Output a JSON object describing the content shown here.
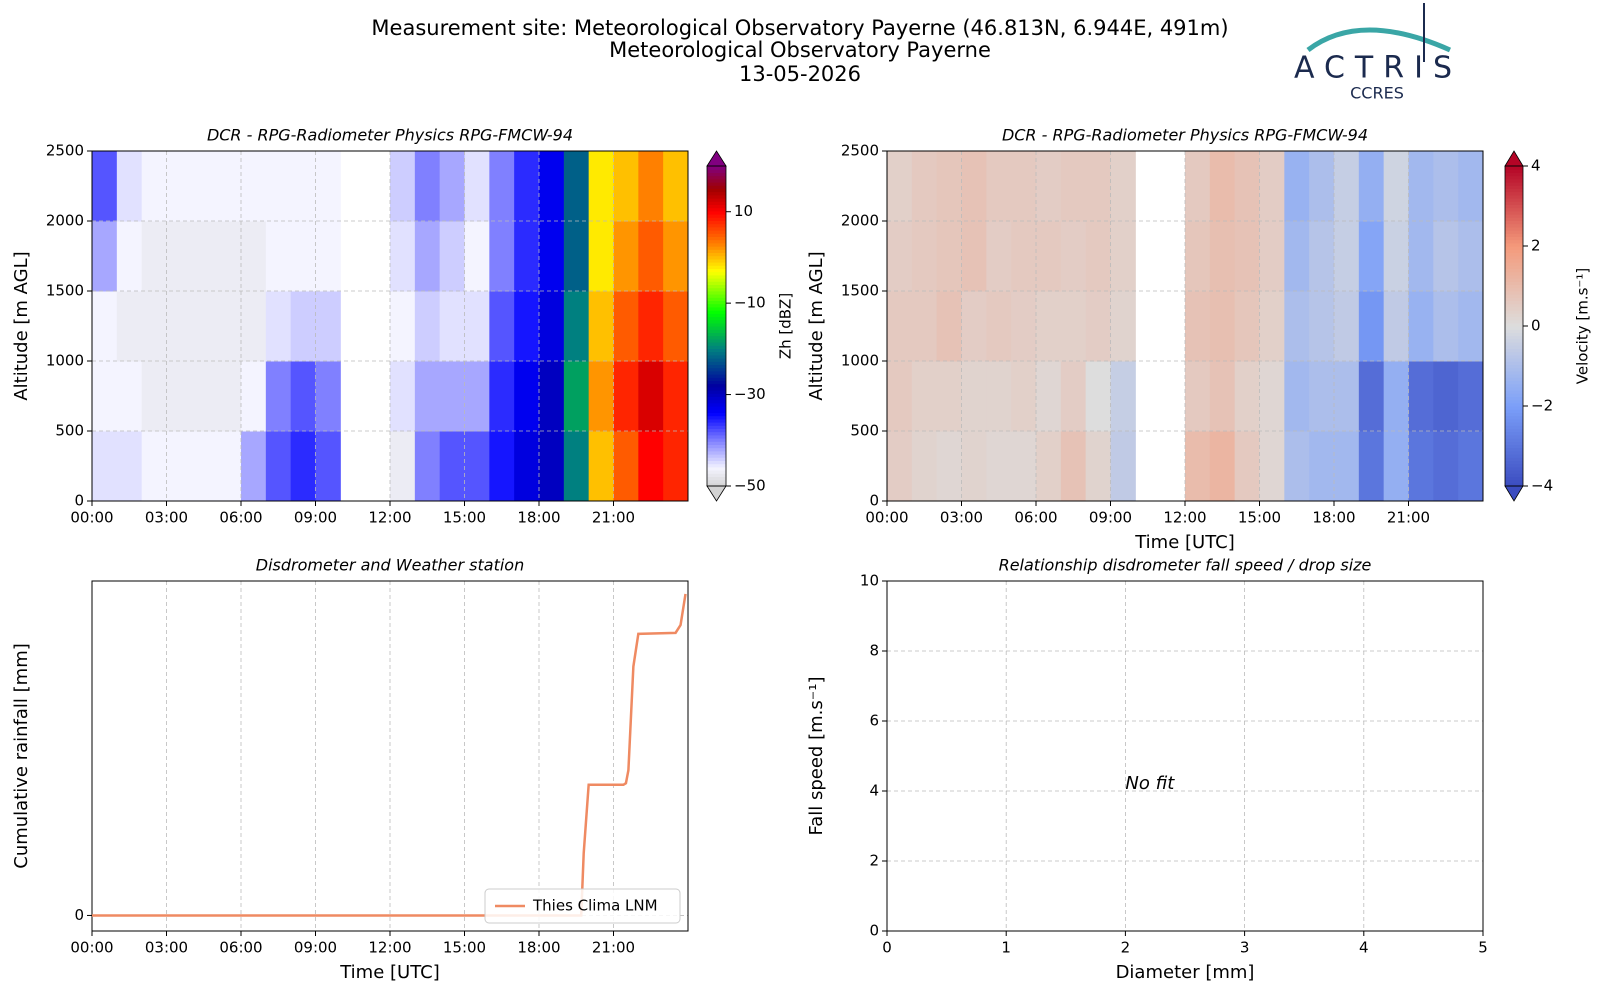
{
  "header": {
    "title_lines": [
      "Measurement site: Meteorological Observatory Payerne (46.813N, 6.944E, 491m)",
      "Meteorological Observatory Payerne",
      "13-05-2026"
    ],
    "logo": {
      "name": "ACTRIS",
      "subtitle": "CCRES"
    }
  },
  "chart_data": [
    {
      "type": "heatmap",
      "title": "DCR - RPG-Radiometer Physics RPG-FMCW-94",
      "ylabel": "Altitude [m AGL]",
      "xbins": [
        0,
        1,
        2,
        3,
        4,
        5,
        6,
        7,
        8,
        9,
        10,
        11,
        12,
        13,
        14,
        15,
        16,
        17,
        18,
        19,
        20,
        21,
        22,
        23,
        24
      ],
      "ybins": [
        0,
        500,
        1000,
        1500,
        2000,
        2500
      ],
      "z": [
        [
          -45,
          -45,
          -46,
          -46,
          -46,
          -46,
          -42,
          -38,
          -36,
          -38,
          null,
          null,
          -47,
          -40,
          -38,
          -38,
          -35,
          -32,
          -30,
          -20,
          0,
          5,
          10,
          8
        ],
        [
          -46,
          -46,
          -47,
          -47,
          -47,
          -47,
          -46,
          -40,
          -38,
          -40,
          null,
          null,
          -45,
          -42,
          -42,
          -42,
          -36,
          -33,
          -30,
          -18,
          2,
          8,
          12,
          8
        ],
        [
          -46,
          -47,
          -47,
          -47,
          -47,
          -47,
          -47,
          -45,
          -44,
          -44,
          null,
          null,
          -46,
          -44,
          -45,
          -45,
          -38,
          -35,
          -32,
          -20,
          0,
          5,
          8,
          5
        ],
        [
          -42,
          -46,
          -47,
          -47,
          -47,
          -47,
          -47,
          -46,
          -46,
          -46,
          null,
          null,
          -45,
          -42,
          -44,
          -46,
          -40,
          -36,
          -33,
          -22,
          -2,
          2,
          5,
          2
        ],
        [
          -38,
          -45,
          -46,
          -46,
          -46,
          -46,
          -46,
          -46,
          -46,
          -46,
          null,
          null,
          -44,
          -40,
          -42,
          -45,
          -40,
          -36,
          -33,
          -22,
          -2,
          0,
          3,
          0
        ]
      ],
      "xlim": [
        0,
        24
      ],
      "ylim": [
        0,
        2500
      ],
      "xticks": [
        {
          "value": 0,
          "label": "00:00"
        },
        {
          "value": 3,
          "label": "03:00"
        },
        {
          "value": 6,
          "label": "06:00"
        },
        {
          "value": 9,
          "label": "09:00"
        },
        {
          "value": 12,
          "label": "12:00"
        },
        {
          "value": 15,
          "label": "15:00"
        },
        {
          "value": 18,
          "label": "18:00"
        },
        {
          "value": 21,
          "label": "21:00"
        }
      ],
      "yticks": [
        0,
        500,
        1000,
        1500,
        2000,
        2500
      ],
      "grid": true,
      "colorbar_label": "Zh [dBZ]",
      "clim": [
        -50,
        20
      ],
      "cbticks": [
        {
          "value": -50,
          "label": "−50"
        },
        {
          "value": -30,
          "label": "−30"
        },
        {
          "value": -10,
          "label": "−10"
        },
        10
      ],
      "colormap": [
        {
          "value": -50,
          "color": "#d3d3d3"
        },
        {
          "value": -46,
          "color": "#f4f4ff"
        },
        {
          "value": -40,
          "color": "#8080ff"
        },
        {
          "value": -34,
          "color": "#0000ff"
        },
        {
          "value": -28,
          "color": "#0000a0"
        },
        {
          "value": -20,
          "color": "#008080"
        },
        {
          "value": -12,
          "color": "#00ff00"
        },
        {
          "value": -3,
          "color": "#ffff00"
        },
        {
          "value": 3,
          "color": "#ff8000"
        },
        {
          "value": 10,
          "color": "#ff0000"
        },
        {
          "value": 15,
          "color": "#a00000"
        },
        {
          "value": 20,
          "color": "#800080"
        }
      ]
    },
    {
      "type": "heatmap",
      "title": "DCR - RPG-Radiometer Physics RPG-FMCW-94",
      "ylabel": "Altitude [m AGL]",
      "xlabel": "Time [UTC]",
      "xbins": [
        0,
        1,
        2,
        3,
        4,
        5,
        6,
        7,
        8,
        9,
        10,
        11,
        12,
        13,
        14,
        15,
        16,
        17,
        18,
        19,
        20,
        21,
        22,
        23,
        24
      ],
      "ybins": [
        0,
        500,
        1000,
        1500,
        2000,
        2500
      ],
      "z": [
        [
          0.5,
          0.3,
          0.2,
          0.3,
          0.2,
          0.2,
          0.4,
          0.8,
          0.3,
          -0.6,
          null,
          null,
          1.0,
          1.2,
          0.6,
          0.2,
          -1.0,
          -1.2,
          -1.2,
          -3.0,
          -1.5,
          -3.0,
          -3.2,
          -3.0
        ],
        [
          0.6,
          0.4,
          0.4,
          0.3,
          0.3,
          0.4,
          0.2,
          0.5,
          0.0,
          -0.5,
          null,
          null,
          0.6,
          0.8,
          0.4,
          0.2,
          -1.2,
          -1.0,
          -1.0,
          -3.2,
          -1.5,
          -3.2,
          -3.4,
          -3.2
        ],
        [
          0.6,
          0.6,
          0.8,
          0.5,
          0.6,
          0.5,
          0.4,
          0.4,
          0.5,
          0.3,
          null,
          null,
          0.8,
          0.9,
          0.7,
          0.4,
          -1.0,
          -0.8,
          -0.6,
          -2.2,
          -0.6,
          -1.4,
          -1.0,
          -1.2
        ],
        [
          0.5,
          0.6,
          0.7,
          0.8,
          0.5,
          0.6,
          0.6,
          0.5,
          0.6,
          0.4,
          null,
          null,
          0.7,
          0.9,
          0.8,
          0.5,
          -1.2,
          -0.8,
          -0.5,
          -1.8,
          -0.4,
          -1.2,
          -0.8,
          -1.0
        ],
        [
          0.4,
          0.6,
          0.7,
          0.8,
          0.6,
          0.6,
          0.5,
          0.6,
          0.6,
          0.4,
          null,
          null,
          0.6,
          1.0,
          0.8,
          0.5,
          -1.4,
          -1.0,
          -0.5,
          -1.5,
          -0.3,
          -1.2,
          -1.0,
          -1.2
        ]
      ],
      "xlim": [
        0,
        24
      ],
      "ylim": [
        0,
        2500
      ],
      "xticks": [
        {
          "value": 0,
          "label": "00:00"
        },
        {
          "value": 3,
          "label": "03:00"
        },
        {
          "value": 6,
          "label": "06:00"
        },
        {
          "value": 9,
          "label": "09:00"
        },
        {
          "value": 12,
          "label": "12:00"
        },
        {
          "value": 15,
          "label": "15:00"
        },
        {
          "value": 18,
          "label": "18:00"
        },
        {
          "value": 21,
          "label": "21:00"
        }
      ],
      "yticks": [
        0,
        500,
        1000,
        1500,
        2000,
        2500
      ],
      "grid": true,
      "colorbar_label": "Velocity [m.s⁻¹]",
      "clim": [
        -4,
        4
      ],
      "cbticks": [
        {
          "value": -4,
          "label": "−4"
        },
        {
          "value": -2,
          "label": "−2"
        },
        0,
        2,
        4
      ],
      "colormap": [
        {
          "value": -4,
          "color": "#3b4cc0"
        },
        {
          "value": -2,
          "color": "#7b9ff9"
        },
        {
          "value": 0,
          "color": "#dddddd"
        },
        {
          "value": 2,
          "color": "#f49a7b"
        },
        {
          "value": 4,
          "color": "#b40426"
        }
      ]
    },
    {
      "type": "line",
      "title": "Disdrometer and Weather station",
      "ylabel": "Cumulative rainfall [mm]",
      "xlabel": "Time [UTC]",
      "x": [
        0,
        19.7,
        19.8,
        20.0,
        21.4,
        21.5,
        21.6,
        21.8,
        22.0,
        23.5,
        23.7,
        23.9
      ],
      "series": [
        {
          "name": "Thies Clima LNM",
          "color": "#ef8a62",
          "values": [
            0,
            0,
            1.2,
            2.52,
            2.52,
            2.55,
            2.8,
            4.8,
            5.43,
            5.45,
            5.6,
            6.2
          ]
        }
      ],
      "xlim": [
        0,
        24
      ],
      "ylim": [
        -0.3,
        6.45
      ],
      "xticks": [
        {
          "value": 0,
          "label": "00:00"
        },
        {
          "value": 3,
          "label": "03:00"
        },
        {
          "value": 6,
          "label": "06:00"
        },
        {
          "value": 9,
          "label": "09:00"
        },
        {
          "value": 12,
          "label": "12:00"
        },
        {
          "value": 15,
          "label": "15:00"
        },
        {
          "value": 18,
          "label": "18:00"
        },
        {
          "value": 21,
          "label": "21:00"
        }
      ],
      "yticks": [
        0
      ],
      "grid": true,
      "legend": "lower right"
    },
    {
      "type": "scatter",
      "title": "Relationship disdrometer fall speed / drop size",
      "ylabel": "Fall speed [m.s⁻¹]",
      "xlabel": "Diameter [mm]",
      "annotation": {
        "text": "No fit",
        "x": 2,
        "y": 4.2
      },
      "xlim": [
        0,
        5
      ],
      "ylim": [
        0,
        10
      ],
      "xticks": [
        0,
        1,
        2,
        3,
        4,
        5
      ],
      "yticks": [
        0,
        2,
        4,
        6,
        8,
        10
      ],
      "grid": true
    }
  ]
}
